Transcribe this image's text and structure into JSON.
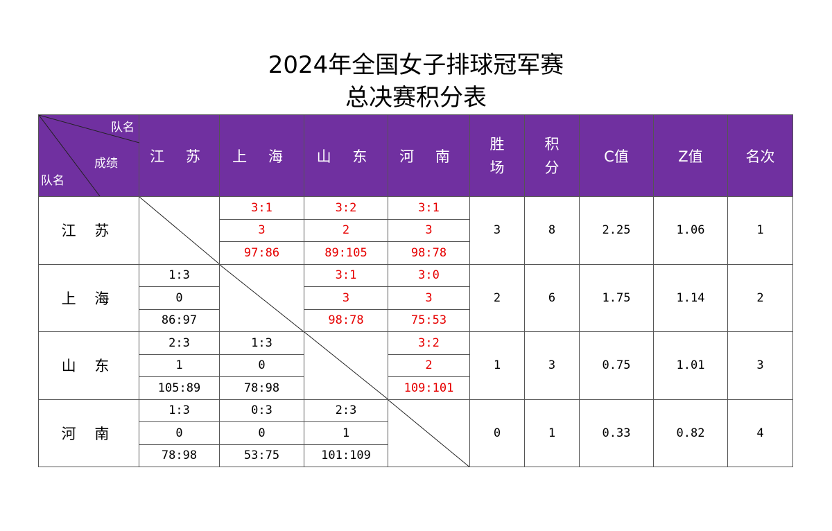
{
  "title_line1": "2024年全国女子排球冠军赛",
  "title_line2": "总决赛积分表",
  "header": {
    "corner_top": "队名",
    "corner_middle": "成绩",
    "corner_bottom": "队名",
    "teams": [
      "江 苏",
      "上 海",
      "山 东",
      "河 南"
    ],
    "wins_line1": "胜",
    "wins_line2": "场",
    "points_line1": "积",
    "points_line2": "分",
    "c_value": "C值",
    "z_value": "Z值",
    "rank": "名次"
  },
  "colors": {
    "header_bg": "#7030a0",
    "header_text": "#ffffff",
    "highlight": "#e60000"
  },
  "rows": [
    {
      "team": "江 苏",
      "results": [
        null,
        {
          "sets": "3:1",
          "pts": "3",
          "score": "97:86"
        },
        {
          "sets": "3:2",
          "pts": "2",
          "score": "89:105"
        },
        {
          "sets": "3:1",
          "pts": "3",
          "score": "98:78"
        }
      ],
      "wins": "3",
      "points": "8",
      "c": "2.25",
      "z": "1.06",
      "rank": "1"
    },
    {
      "team": "上 海",
      "results": [
        {
          "sets": "1:3",
          "pts": "0",
          "score": "86:97"
        },
        null,
        {
          "sets": "3:1",
          "pts": "3",
          "score": "98:78"
        },
        {
          "sets": "3:0",
          "pts": "3",
          "score": "75:53"
        }
      ],
      "wins": "2",
      "points": "6",
      "c": "1.75",
      "z": "1.14",
      "rank": "2"
    },
    {
      "team": "山 东",
      "results": [
        {
          "sets": "2:3",
          "pts": "1",
          "score": "105:89"
        },
        {
          "sets": "1:3",
          "pts": "0",
          "score": "78:98"
        },
        null,
        {
          "sets": "3:2",
          "pts": "2",
          "score": "109:101"
        }
      ],
      "wins": "1",
      "points": "3",
      "c": "0.75",
      "z": "1.01",
      "rank": "3"
    },
    {
      "team": "河 南",
      "results": [
        {
          "sets": "1:3",
          "pts": "0",
          "score": "78:98"
        },
        {
          "sets": "0:3",
          "pts": "0",
          "score": "53:75"
        },
        {
          "sets": "2:3",
          "pts": "1",
          "score": "101:109"
        },
        null
      ],
      "wins": "0",
      "points": "1",
      "c": "0.33",
      "z": "0.82",
      "rank": "4"
    }
  ]
}
